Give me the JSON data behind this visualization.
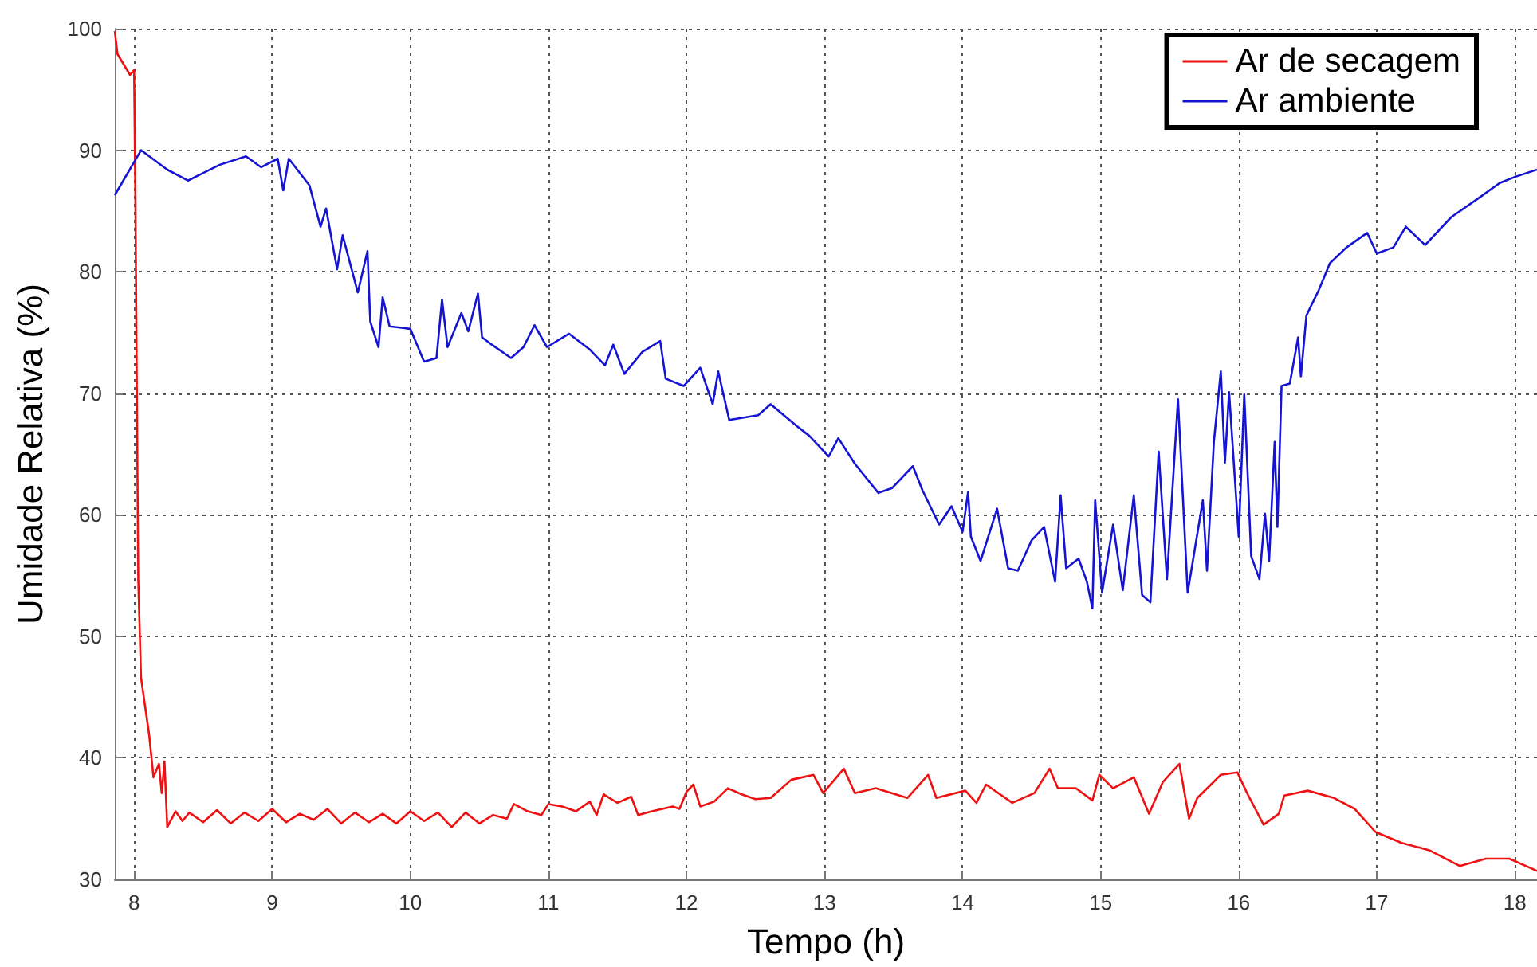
{
  "chart_data": {
    "type": "line",
    "xlabel": "Tempo (h)",
    "ylabel": "Umidade Relativa (%)",
    "xlim": [
      7.86,
      18.16
    ],
    "ylim": [
      30,
      100
    ],
    "xticks": [
      8,
      9,
      10,
      11,
      12,
      13,
      14,
      15,
      16,
      17,
      18
    ],
    "yticks": [
      30,
      40,
      50,
      60,
      70,
      80,
      90,
      100
    ],
    "grid": true,
    "legend": "top right",
    "marker": "none",
    "line_style": "solid",
    "series": [
      {
        "name": "Ar de secagem",
        "color": "#ee1111",
        "x": [
          7.86,
          7.88,
          7.97,
          8.0,
          8.01,
          8.03,
          8.05,
          8.11,
          8.14,
          8.18,
          8.2,
          8.22,
          8.24,
          8.3,
          8.35,
          8.4,
          8.5,
          8.6,
          8.7,
          8.8,
          8.9,
          9.0,
          9.1,
          9.2,
          9.3,
          9.4,
          9.5,
          9.6,
          9.7,
          9.8,
          9.9,
          10.0,
          10.1,
          10.2,
          10.3,
          10.4,
          10.5,
          10.6,
          10.7,
          10.75,
          10.85,
          10.95,
          11.0,
          11.1,
          11.2,
          11.3,
          11.35,
          11.4,
          11.5,
          11.6,
          11.65,
          11.75,
          11.9,
          11.95,
          12.0,
          12.05,
          12.1,
          12.2,
          12.3,
          12.4,
          12.5,
          12.61,
          12.76,
          12.92,
          12.99,
          13.14,
          13.22,
          13.37,
          13.6,
          13.75,
          13.81,
          14.02,
          14.1,
          14.17,
          14.36,
          14.52,
          14.63,
          14.69,
          14.82,
          14.94,
          14.99,
          15.09,
          15.24,
          15.35,
          15.45,
          15.57,
          15.64,
          15.7,
          15.87,
          15.99,
          16.06,
          16.18,
          16.29,
          16.33,
          16.5,
          16.69,
          16.84,
          16.99,
          17.18,
          17.38,
          17.6,
          17.79,
          17.96,
          18.16
        ],
        "values": [
          99.8,
          97.9,
          96.2,
          96.6,
          85.0,
          54.7,
          46.6,
          41.8,
          38.4,
          39.5,
          37.1,
          39.7,
          34.3,
          35.6,
          34.8,
          35.5,
          34.7,
          35.7,
          34.6,
          35.5,
          34.8,
          35.8,
          34.7,
          35.4,
          34.9,
          35.8,
          34.6,
          35.5,
          34.7,
          35.4,
          34.6,
          35.6,
          34.8,
          35.5,
          34.3,
          35.5,
          34.6,
          35.3,
          35.0,
          36.2,
          35.6,
          35.3,
          36.2,
          36.0,
          35.6,
          36.4,
          35.3,
          37.0,
          36.3,
          36.8,
          35.3,
          35.6,
          36.0,
          35.8,
          37.2,
          37.8,
          36.0,
          36.4,
          37.5,
          37.0,
          36.6,
          36.7,
          38.2,
          38.6,
          37.1,
          39.1,
          37.1,
          37.5,
          36.7,
          38.6,
          36.7,
          37.3,
          36.3,
          37.8,
          36.3,
          37.1,
          39.1,
          37.5,
          37.5,
          36.5,
          38.6,
          37.5,
          38.4,
          35.4,
          38.0,
          39.5,
          35.0,
          36.7,
          38.6,
          38.8,
          37.1,
          34.5,
          35.4,
          36.9,
          37.3,
          36.7,
          35.8,
          33.9,
          33.0,
          32.4,
          31.1,
          31.7,
          31.7,
          30.7
        ]
      },
      {
        "name": "Ar ambiente",
        "color": "#1414d2",
        "x": [
          7.86,
          8.05,
          8.24,
          8.39,
          8.62,
          8.81,
          8.92,
          9.04,
          9.08,
          9.12,
          9.27,
          9.35,
          9.39,
          9.47,
          9.51,
          9.62,
          9.69,
          9.71,
          9.77,
          9.8,
          9.85,
          10.0,
          10.1,
          10.19,
          10.23,
          10.27,
          10.37,
          10.42,
          10.49,
          10.52,
          10.59,
          10.73,
          10.82,
          10.9,
          10.99,
          11.15,
          11.3,
          11.41,
          11.47,
          11.55,
          11.68,
          11.81,
          11.85,
          11.98,
          12.1,
          12.19,
          12.23,
          12.31,
          12.52,
          12.61,
          12.8,
          12.89,
          13.03,
          13.1,
          13.22,
          13.39,
          13.49,
          13.64,
          13.71,
          13.83,
          13.92,
          14.0,
          14.04,
          14.06,
          14.13,
          14.25,
          14.33,
          14.4,
          14.5,
          14.59,
          14.67,
          14.71,
          14.75,
          14.84,
          14.9,
          14.94,
          14.96,
          15.01,
          15.09,
          15.16,
          15.24,
          15.3,
          15.36,
          15.42,
          15.48,
          15.56,
          15.63,
          15.74,
          15.77,
          15.82,
          15.87,
          15.9,
          15.93,
          16.0,
          16.04,
          16.09,
          16.15,
          16.19,
          16.22,
          16.26,
          16.28,
          16.31,
          16.37,
          16.43,
          16.45,
          16.49,
          16.58,
          16.66,
          16.78,
          16.93,
          17.0,
          17.12,
          17.21,
          17.35,
          17.54,
          17.73,
          17.89,
          18.0,
          18.16
        ],
        "values": [
          86.3,
          90.0,
          88.4,
          87.5,
          88.8,
          89.5,
          88.6,
          89.3,
          86.7,
          89.3,
          87.1,
          83.7,
          85.2,
          80.2,
          83.0,
          78.3,
          81.7,
          75.9,
          73.8,
          77.9,
          75.5,
          75.3,
          72.6,
          72.9,
          77.7,
          73.8,
          76.6,
          75.1,
          78.2,
          74.6,
          74.0,
          72.9,
          73.8,
          75.6,
          73.8,
          74.9,
          73.6,
          72.3,
          74.0,
          71.6,
          73.4,
          74.3,
          71.2,
          70.6,
          72.1,
          69.1,
          71.8,
          67.8,
          68.2,
          69.1,
          67.3,
          66.5,
          64.8,
          66.3,
          64.2,
          61.8,
          62.2,
          64.0,
          62.0,
          59.2,
          60.7,
          58.6,
          61.9,
          58.2,
          56.2,
          60.5,
          55.6,
          55.4,
          57.9,
          59.0,
          54.5,
          61.6,
          55.6,
          56.4,
          54.5,
          52.3,
          61.2,
          53.6,
          59.2,
          53.8,
          61.6,
          53.4,
          52.8,
          65.2,
          54.7,
          69.5,
          53.6,
          61.2,
          55.4,
          66.0,
          71.8,
          64.3,
          70.1,
          58.2,
          69.9,
          56.6,
          54.7,
          60.1,
          56.2,
          66.0,
          59.0,
          70.6,
          70.8,
          74.6,
          71.4,
          76.4,
          78.5,
          80.7,
          82.0,
          83.2,
          81.5,
          82.0,
          83.7,
          82.2,
          84.5,
          86.0,
          87.3,
          87.8,
          88.4
        ]
      }
    ]
  }
}
